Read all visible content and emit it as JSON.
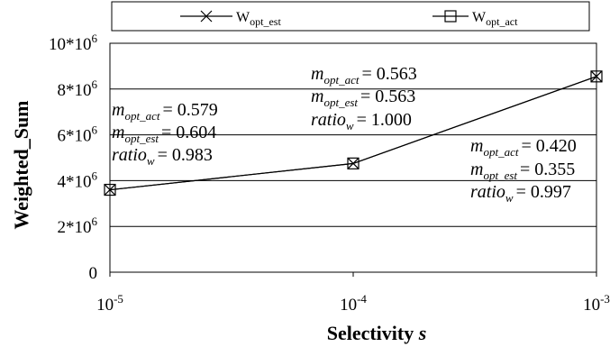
{
  "chart_data": {
    "type": "line",
    "title": "",
    "xlabel": {
      "text": "Selectivity ",
      "italic_part": "s"
    },
    "ylabel": "Weighted_Sum",
    "x_scale": "log",
    "x": [
      1e-05,
      0.0001,
      0.001
    ],
    "x_tick_labels": [
      {
        "base": "10",
        "exp": "-5"
      },
      {
        "base": "10",
        "exp": "-4"
      },
      {
        "base": "10",
        "exp": "-3"
      }
    ],
    "ylim": [
      0,
      10000000
    ],
    "y_ticks": [
      0,
      2000000,
      4000000,
      6000000,
      8000000,
      10000000
    ],
    "y_tick_labels": [
      {
        "base": "0",
        "exp": ""
      },
      {
        "base": "2*10",
        "exp": "6"
      },
      {
        "base": "4*10",
        "exp": "6"
      },
      {
        "base": "6*10",
        "exp": "6"
      },
      {
        "base": "8*10",
        "exp": "6"
      },
      {
        "base": "10*10",
        "exp": "6"
      }
    ],
    "grid": "horizontal",
    "legend_position": "top",
    "series": [
      {
        "name": "W",
        "sub": "opt_est",
        "marker": "x",
        "values": [
          3600000,
          4750000,
          8550000
        ]
      },
      {
        "name": "W",
        "sub": "opt_act",
        "marker": "square",
        "values": [
          3600000,
          4750000,
          8550000
        ]
      }
    ],
    "annotations": [
      {
        "lines": [
          {
            "var": "m",
            "sub": "opt_act",
            "value": "= 0.579"
          },
          {
            "var": "m",
            "sub": "opt_est",
            "value": "= 0.604"
          },
          {
            "var": "ratio",
            "sub": "w",
            "value": "= 0.983"
          }
        ]
      },
      {
        "lines": [
          {
            "var": "m",
            "sub": "opt_act",
            "value": "= 0.563"
          },
          {
            "var": "m",
            "sub": "opt_est",
            "value": "= 0.563"
          },
          {
            "var": "ratio",
            "sub": "w",
            "value": "= 1.000"
          }
        ]
      },
      {
        "lines": [
          {
            "var": "m",
            "sub": "opt_act",
            "value": "= 0.420"
          },
          {
            "var": "m",
            "sub": "opt_est",
            "value": "= 0.355"
          },
          {
            "var": "ratio",
            "sub": "w",
            "value": "= 0.997"
          }
        ]
      }
    ]
  }
}
